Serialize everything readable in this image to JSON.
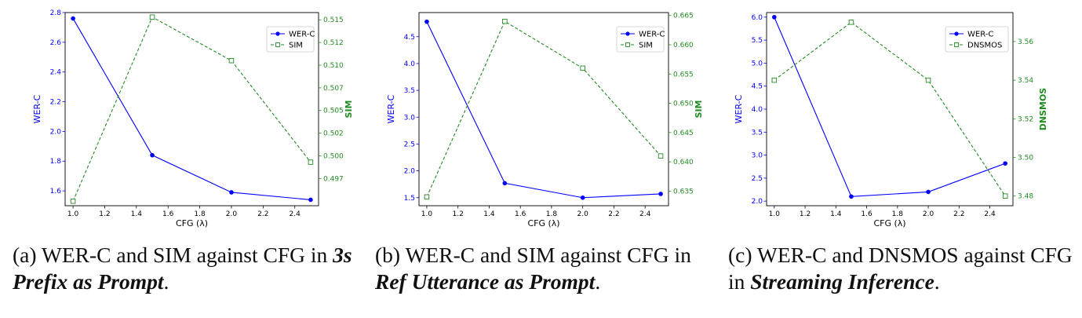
{
  "colors": {
    "primary": "#0000ff",
    "secondary": "#228b22"
  },
  "captions": [
    {
      "label": "(a)",
      "text1": "WER-C and SIM against CFG in",
      "emph": "3s Prefix as Prompt",
      "end": "."
    },
    {
      "label": "(b)",
      "text1": "WER-C and SIM against CFG in",
      "emph": "Ref Utterance as Prompt",
      "end": "."
    },
    {
      "label": "(c)",
      "text1": "WER-C and DNSMOS against CFG in",
      "emph": "Streaming Inference",
      "end": "."
    }
  ],
  "chart_data": [
    {
      "type": "line",
      "x": [
        1.0,
        1.5,
        2.0,
        2.5
      ],
      "xlabel": "CFG (λ)",
      "xlim": [
        0.95,
        2.55
      ],
      "xticks": [
        "1.0",
        "1.2",
        "1.4",
        "1.6",
        "1.8",
        "2.0",
        "2.2",
        "2.4"
      ],
      "left": {
        "name": "WER-C",
        "ylabel": "WER-C",
        "values": [
          2.76,
          1.84,
          1.59,
          1.54
        ],
        "ylim": [
          1.5,
          2.8
        ],
        "ticks": [
          "1.6",
          "1.8",
          "2.0",
          "2.2",
          "2.4",
          "2.6",
          "2.8"
        ],
        "marker": "circle",
        "style": "solid"
      },
      "right": {
        "name": "SIM",
        "ylabel": "SIM",
        "values": [
          0.4945,
          0.5148,
          0.51,
          0.4988
        ],
        "ylim": [
          0.494,
          0.5153
        ],
        "ticks": [
          "0.497",
          "0.500",
          "0.502",
          "0.505",
          "0.507",
          "0.510",
          "0.512",
          "0.515"
        ],
        "tick_values": [
          0.497,
          0.4995,
          0.502,
          0.5045,
          0.507,
          0.5095,
          0.512,
          0.5145
        ],
        "marker": "square",
        "style": "dashed"
      },
      "legend": "top-right",
      "grid": false
    },
    {
      "type": "line",
      "x": [
        1.0,
        1.5,
        2.0,
        2.5
      ],
      "xlabel": "CFG (λ)",
      "xlim": [
        0.95,
        2.55
      ],
      "xticks": [
        "1.0",
        "1.2",
        "1.4",
        "1.6",
        "1.8",
        "2.0",
        "2.2",
        "2.4"
      ],
      "left": {
        "name": "WER-C",
        "ylabel": "WER-C",
        "values": [
          4.78,
          1.77,
          1.5,
          1.57
        ],
        "ylim": [
          1.35,
          4.95
        ],
        "ticks": [
          "1.5",
          "2.0",
          "2.5",
          "3.0",
          "3.5",
          "4.0",
          "4.5"
        ],
        "marker": "circle",
        "style": "solid"
      },
      "right": {
        "name": "SIM",
        "ylabel": "SIM",
        "values": [
          0.634,
          0.664,
          0.656,
          0.641
        ],
        "ylim": [
          0.6325,
          0.6655
        ],
        "ticks": [
          "0.635",
          "0.640",
          "0.645",
          "0.650",
          "0.655",
          "0.660",
          "0.665"
        ],
        "marker": "square",
        "style": "dashed"
      },
      "legend": "top-right",
      "grid": false
    },
    {
      "type": "line",
      "x": [
        1.0,
        1.5,
        2.0,
        2.5
      ],
      "xlabel": "CFG (λ)",
      "xlim": [
        0.95,
        2.55
      ],
      "xticks": [
        "1.0",
        "1.2",
        "1.4",
        "1.6",
        "1.8",
        "2.0",
        "2.2",
        "2.4"
      ],
      "left": {
        "name": "WER-C",
        "ylabel": "WER-C",
        "values": [
          6.0,
          2.1,
          2.2,
          2.82
        ],
        "ylim": [
          1.9,
          6.1
        ],
        "ticks": [
          "2.0",
          "2.5",
          "3.0",
          "3.5",
          "4.0",
          "4.5",
          "5.0",
          "5.5",
          "6.0"
        ],
        "marker": "circle",
        "style": "solid"
      },
      "right": {
        "name": "DNSMOS",
        "ylabel": "DNSMOS",
        "values": [
          3.54,
          3.57,
          3.54,
          3.48
        ],
        "ylim": [
          3.475,
          3.575
        ],
        "ticks": [
          "3.48",
          "3.50",
          "3.52",
          "3.54",
          "3.56"
        ],
        "marker": "square",
        "style": "dashed"
      },
      "legend": "top-right",
      "grid": false
    }
  ]
}
